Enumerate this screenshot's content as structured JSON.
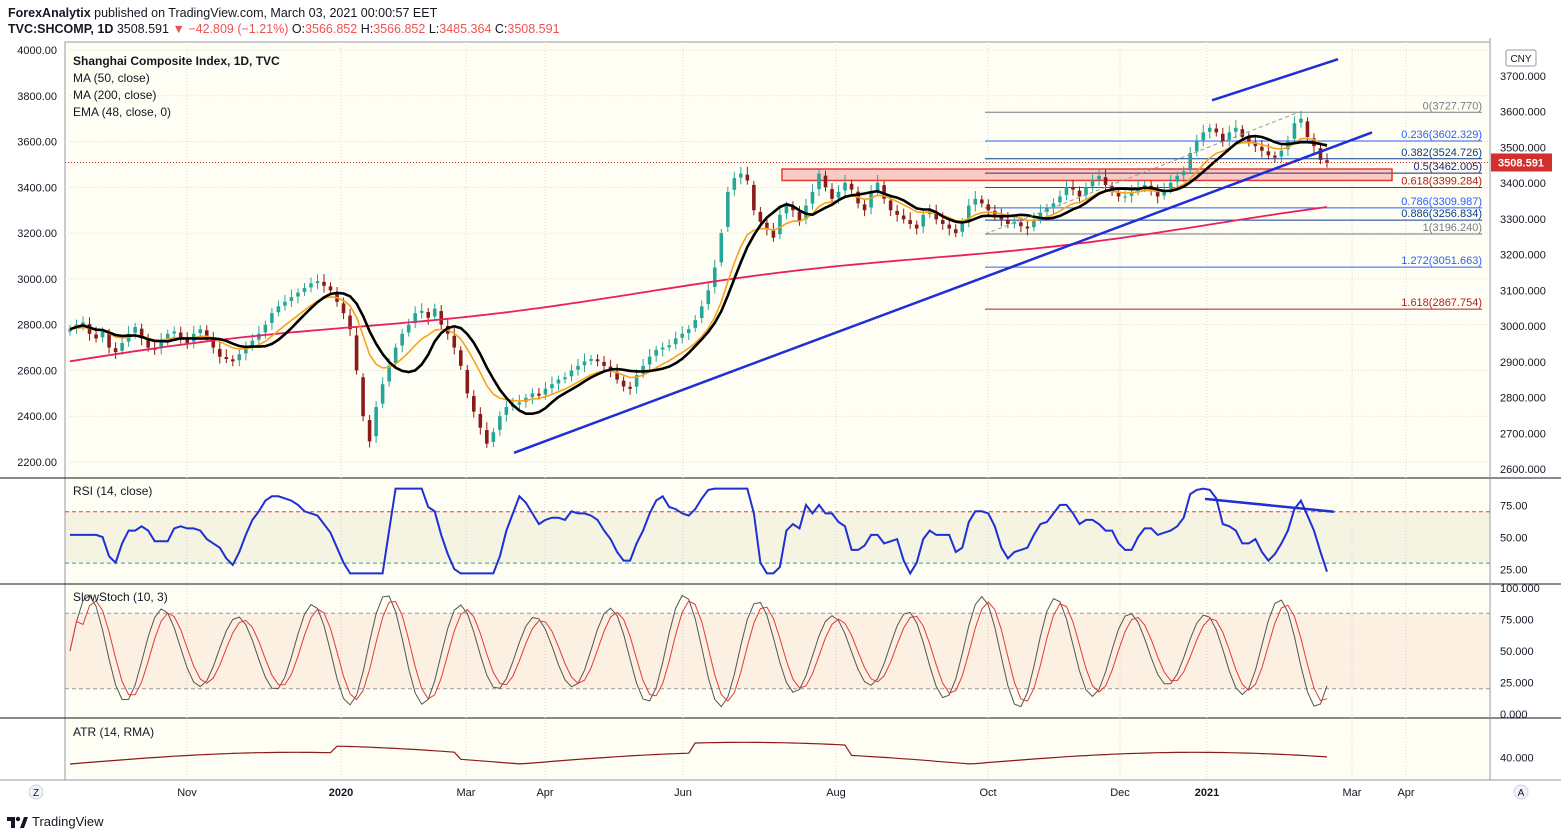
{
  "header": {
    "publisher": "ForexAnalytix",
    "published_text": "published on TradingView.com, March 03, 2021 00:00:57 EET",
    "symbol": "TVC:SHCOMP, 1D",
    "last": "3508.591",
    "change": "−42.809 (−1.21%)",
    "o_label": "O:",
    "o_value": "3566.852",
    "h_label": "H:",
    "h_value": "3566.852",
    "l_label": "L:",
    "l_value": "3485.364",
    "c_label": "C:",
    "c_value": "3508.591"
  },
  "footer": {
    "brand": "TradingView"
  },
  "colors": {
    "bull": "#26a69a",
    "bear": "#8b1a1a",
    "ma50": "#000000",
    "ma200": "#e91e63",
    "ema48": "#f7a21b",
    "trend": "#1f2fd6",
    "rsi": "#1f2fd6",
    "stoch_k": "#555555",
    "stoch_d": "#e53935",
    "atr": "#8b1a1a",
    "last_badge": "#d32f2f"
  },
  "chart_data": {
    "type": "candlestick",
    "title": "Shanghai Composite Index, 1D, TVC",
    "currency": "CNY",
    "legend": [
      "MA (50, close)",
      "MA (200, close)",
      "EMA (48, close, 0)"
    ],
    "last_price": "3508.591",
    "x_ticks": [
      "Nov",
      "2020",
      "Mar",
      "Apr",
      "Jun",
      "Aug",
      "Oct",
      "Dec",
      "2021",
      "Mar",
      "Apr"
    ],
    "y_left_ticks": [
      "4000.00",
      "3800.00",
      "3600.00",
      "3400.00",
      "3200.00",
      "3000.00",
      "2800.00",
      "2600.00",
      "2400.00",
      "2200.00"
    ],
    "y_right_ticks": [
      "3700.000",
      "3600.000",
      "3500.000",
      "3400.000",
      "3300.000",
      "3200.000",
      "3100.000",
      "3000.000",
      "2900.000",
      "2800.000",
      "2700.000",
      "2600.000"
    ],
    "price_close": [
      2780,
      2800,
      2810,
      2760,
      2740,
      2770,
      2700,
      2680,
      2720,
      2760,
      2790,
      2740,
      2700,
      2690,
      2730,
      2760,
      2770,
      2740,
      2720,
      2760,
      2780,
      2750,
      2700,
      2660,
      2650,
      2640,
      2670,
      2700,
      2730,
      2760,
      2800,
      2850,
      2880,
      2900,
      2920,
      2940,
      2960,
      2980,
      2990,
      2970,
      2950,
      2900,
      2850,
      2780,
      2600,
      2400,
      2290,
      2440,
      2540,
      2620,
      2700,
      2760,
      2800,
      2850,
      2860,
      2830,
      2870,
      2800,
      2760,
      2700,
      2620,
      2500,
      2420,
      2350,
      2280,
      2330,
      2400,
      2440,
      2450,
      2460,
      2480,
      2500,
      2490,
      2520,
      2540,
      2560,
      2570,
      2600,
      2620,
      2640,
      2650,
      2640,
      2620,
      2600,
      2560,
      2530,
      2520,
      2580,
      2620,
      2660,
      2690,
      2700,
      2710,
      2740,
      2760,
      2780,
      2820,
      2880,
      2950,
      3050,
      3200,
      3380,
      3440,
      3460,
      3430,
      3300,
      3250,
      3220,
      3180,
      3280,
      3320,
      3300,
      3250,
      3320,
      3380,
      3460,
      3400,
      3350,
      3380,
      3420,
      3390,
      3330,
      3300,
      3380,
      3420,
      3350,
      3300,
      3280,
      3260,
      3240,
      3220,
      3280,
      3300,
      3260,
      3240,
      3220,
      3200,
      3240,
      3320,
      3350,
      3330,
      3300,
      3280,
      3260,
      3240,
      3250,
      3230,
      3220,
      3260,
      3290,
      3310,
      3330,
      3360,
      3400,
      3390,
      3360,
      3400,
      3430,
      3450,
      3410,
      3380,
      3360,
      3360,
      3380,
      3400,
      3410,
      3390,
      3360,
      3390,
      3420,
      3450,
      3470,
      3550,
      3600,
      3640,
      3660,
      3640,
      3600,
      3640,
      3660,
      3620,
      3600,
      3580,
      3560,
      3540,
      3530,
      3560,
      3600,
      3680,
      3700,
      3620,
      3580,
      3520,
      3508
    ],
    "rsi": {
      "title": "RSI (14, close)",
      "ticks": [
        "75.00",
        "50.00",
        "25.00"
      ],
      "upper": 70,
      "lower": 30
    },
    "stoch": {
      "title": "SlowStoch (10, 3)",
      "ticks": [
        "100.000",
        "75.000",
        "50.000",
        "25.000",
        "0.000"
      ],
      "upper": 80,
      "lower": 20
    },
    "atr": {
      "title": "ATR (14, RMA)",
      "ticks": [
        "40.000"
      ]
    },
    "fib_levels": [
      {
        "label": "0(3727.770)",
        "value": 3727.77,
        "color": "#787b86"
      },
      {
        "label": "0.236(3602.329)",
        "value": 3602.329,
        "color": "#2962ff"
      },
      {
        "label": "0.382(3524.726)",
        "value": 3524.726,
        "color": "#0b3d91"
      },
      {
        "label": "0.5(3462.005)",
        "value": 3462.005,
        "color": "#1a237e"
      },
      {
        "label": "0.618(3399.284)",
        "value": 3399.284,
        "color": "#b71c1c"
      },
      {
        "label": "0.786(3309.987)",
        "value": 3309.987,
        "color": "#2962ff"
      },
      {
        "label": "0.886(3256.834)",
        "value": 3256.834,
        "color": "#0b3d91"
      },
      {
        "label": "1(3196.240)",
        "value": 3196.24,
        "color": "#787b86"
      },
      {
        "label": "1.272(3051.663)",
        "value": 3051.663,
        "color": "#2962ff"
      },
      {
        "label": "1.618(2867.754)",
        "value": 2867.754,
        "color": "#b71c1c"
      }
    ]
  },
  "ui": {
    "zoom_button": "Z",
    "auto_button": "A"
  }
}
